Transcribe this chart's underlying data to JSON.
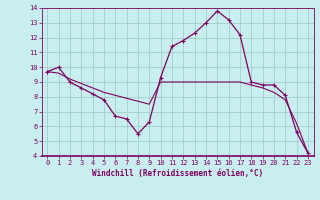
{
  "xlabel": "Windchill (Refroidissement éolien,°C)",
  "background_color": "#c8eef0",
  "grid_color": "#a0d0c8",
  "line_color": "#800060",
  "x_ticks": [
    0,
    1,
    2,
    3,
    4,
    5,
    6,
    7,
    8,
    9,
    10,
    11,
    12,
    13,
    14,
    15,
    16,
    17,
    18,
    19,
    20,
    21,
    22,
    23
  ],
  "y_ticks": [
    4,
    5,
    6,
    7,
    8,
    9,
    10,
    11,
    12,
    13,
    14
  ],
  "xlim": [
    -0.5,
    23.5
  ],
  "ylim": [
    4,
    14
  ],
  "series1_x": [
    0,
    1,
    2,
    3,
    4,
    5,
    6,
    7,
    8,
    9,
    10,
    11,
    12,
    13,
    14,
    15,
    16,
    17,
    18,
    19,
    20,
    21,
    22,
    23
  ],
  "series1_y": [
    9.7,
    10.0,
    9.0,
    8.6,
    8.2,
    7.8,
    6.7,
    6.5,
    5.5,
    6.3,
    9.3,
    11.4,
    11.8,
    12.3,
    13.0,
    13.8,
    13.2,
    12.2,
    9.0,
    8.8,
    8.8,
    8.1,
    5.6,
    4.2
  ],
  "series2_x": [
    0,
    1,
    2,
    3,
    4,
    5,
    6,
    7,
    8,
    9,
    10,
    11,
    12,
    13,
    14,
    15,
    16,
    17,
    18,
    19,
    20,
    21,
    22,
    23
  ],
  "series2_y": [
    9.7,
    9.6,
    9.2,
    8.9,
    8.6,
    8.3,
    8.1,
    7.9,
    7.7,
    7.5,
    9.0,
    9.0,
    9.0,
    9.0,
    9.0,
    9.0,
    9.0,
    9.0,
    8.8,
    8.6,
    8.3,
    7.8,
    6.2,
    4.2
  ],
  "tick_fontsize": 5.0,
  "xlabel_fontsize": 5.5,
  "linewidth1": 0.9,
  "linewidth2": 0.8,
  "markersize": 3.0
}
